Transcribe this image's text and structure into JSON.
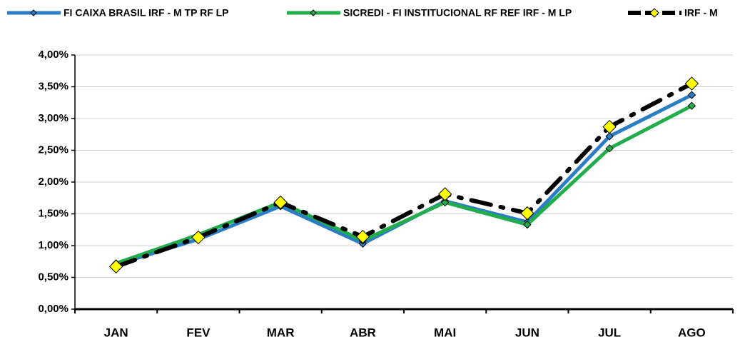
{
  "chart_data": {
    "type": "line",
    "categories": [
      "JAN",
      "FEV",
      "MAR",
      "ABR",
      "MAI",
      "JUN",
      "JUL",
      "AGO"
    ],
    "series": [
      {
        "name": "FI CAIXA BRASIL IRF - M TP RF LP",
        "color": "#2b7dc6",
        "values": [
          0.7,
          1.1,
          1.62,
          1.03,
          1.7,
          1.37,
          2.72,
          3.37
        ]
      },
      {
        "name": "SICREDI - FI INSTITUCIONAL RF REF IRF - M LP",
        "color": "#21ad4b",
        "values": [
          0.72,
          1.17,
          1.68,
          1.08,
          1.68,
          1.33,
          2.53,
          3.2
        ]
      },
      {
        "name": "IRF - M",
        "color": "#000000",
        "values": [
          0.67,
          1.13,
          1.68,
          1.14,
          1.81,
          1.51,
          2.87,
          3.55
        ]
      }
    ],
    "ylim": [
      0,
      4
    ],
    "yticks": [
      {
        "value": 0,
        "label": "0,00%"
      },
      {
        "value": 0.5,
        "label": "0,50%"
      },
      {
        "value": 1,
        "label": "1,00%"
      },
      {
        "value": 1.5,
        "label": "1,50%"
      },
      {
        "value": 2,
        "label": "2,00%"
      },
      {
        "value": 2.5,
        "label": "2,50%"
      },
      {
        "value": 3,
        "label": "3,00%"
      },
      {
        "value": 3.5,
        "label": "3,50%"
      },
      {
        "value": 4,
        "label": "4,00%"
      }
    ],
    "grid": true,
    "legend": "top"
  }
}
